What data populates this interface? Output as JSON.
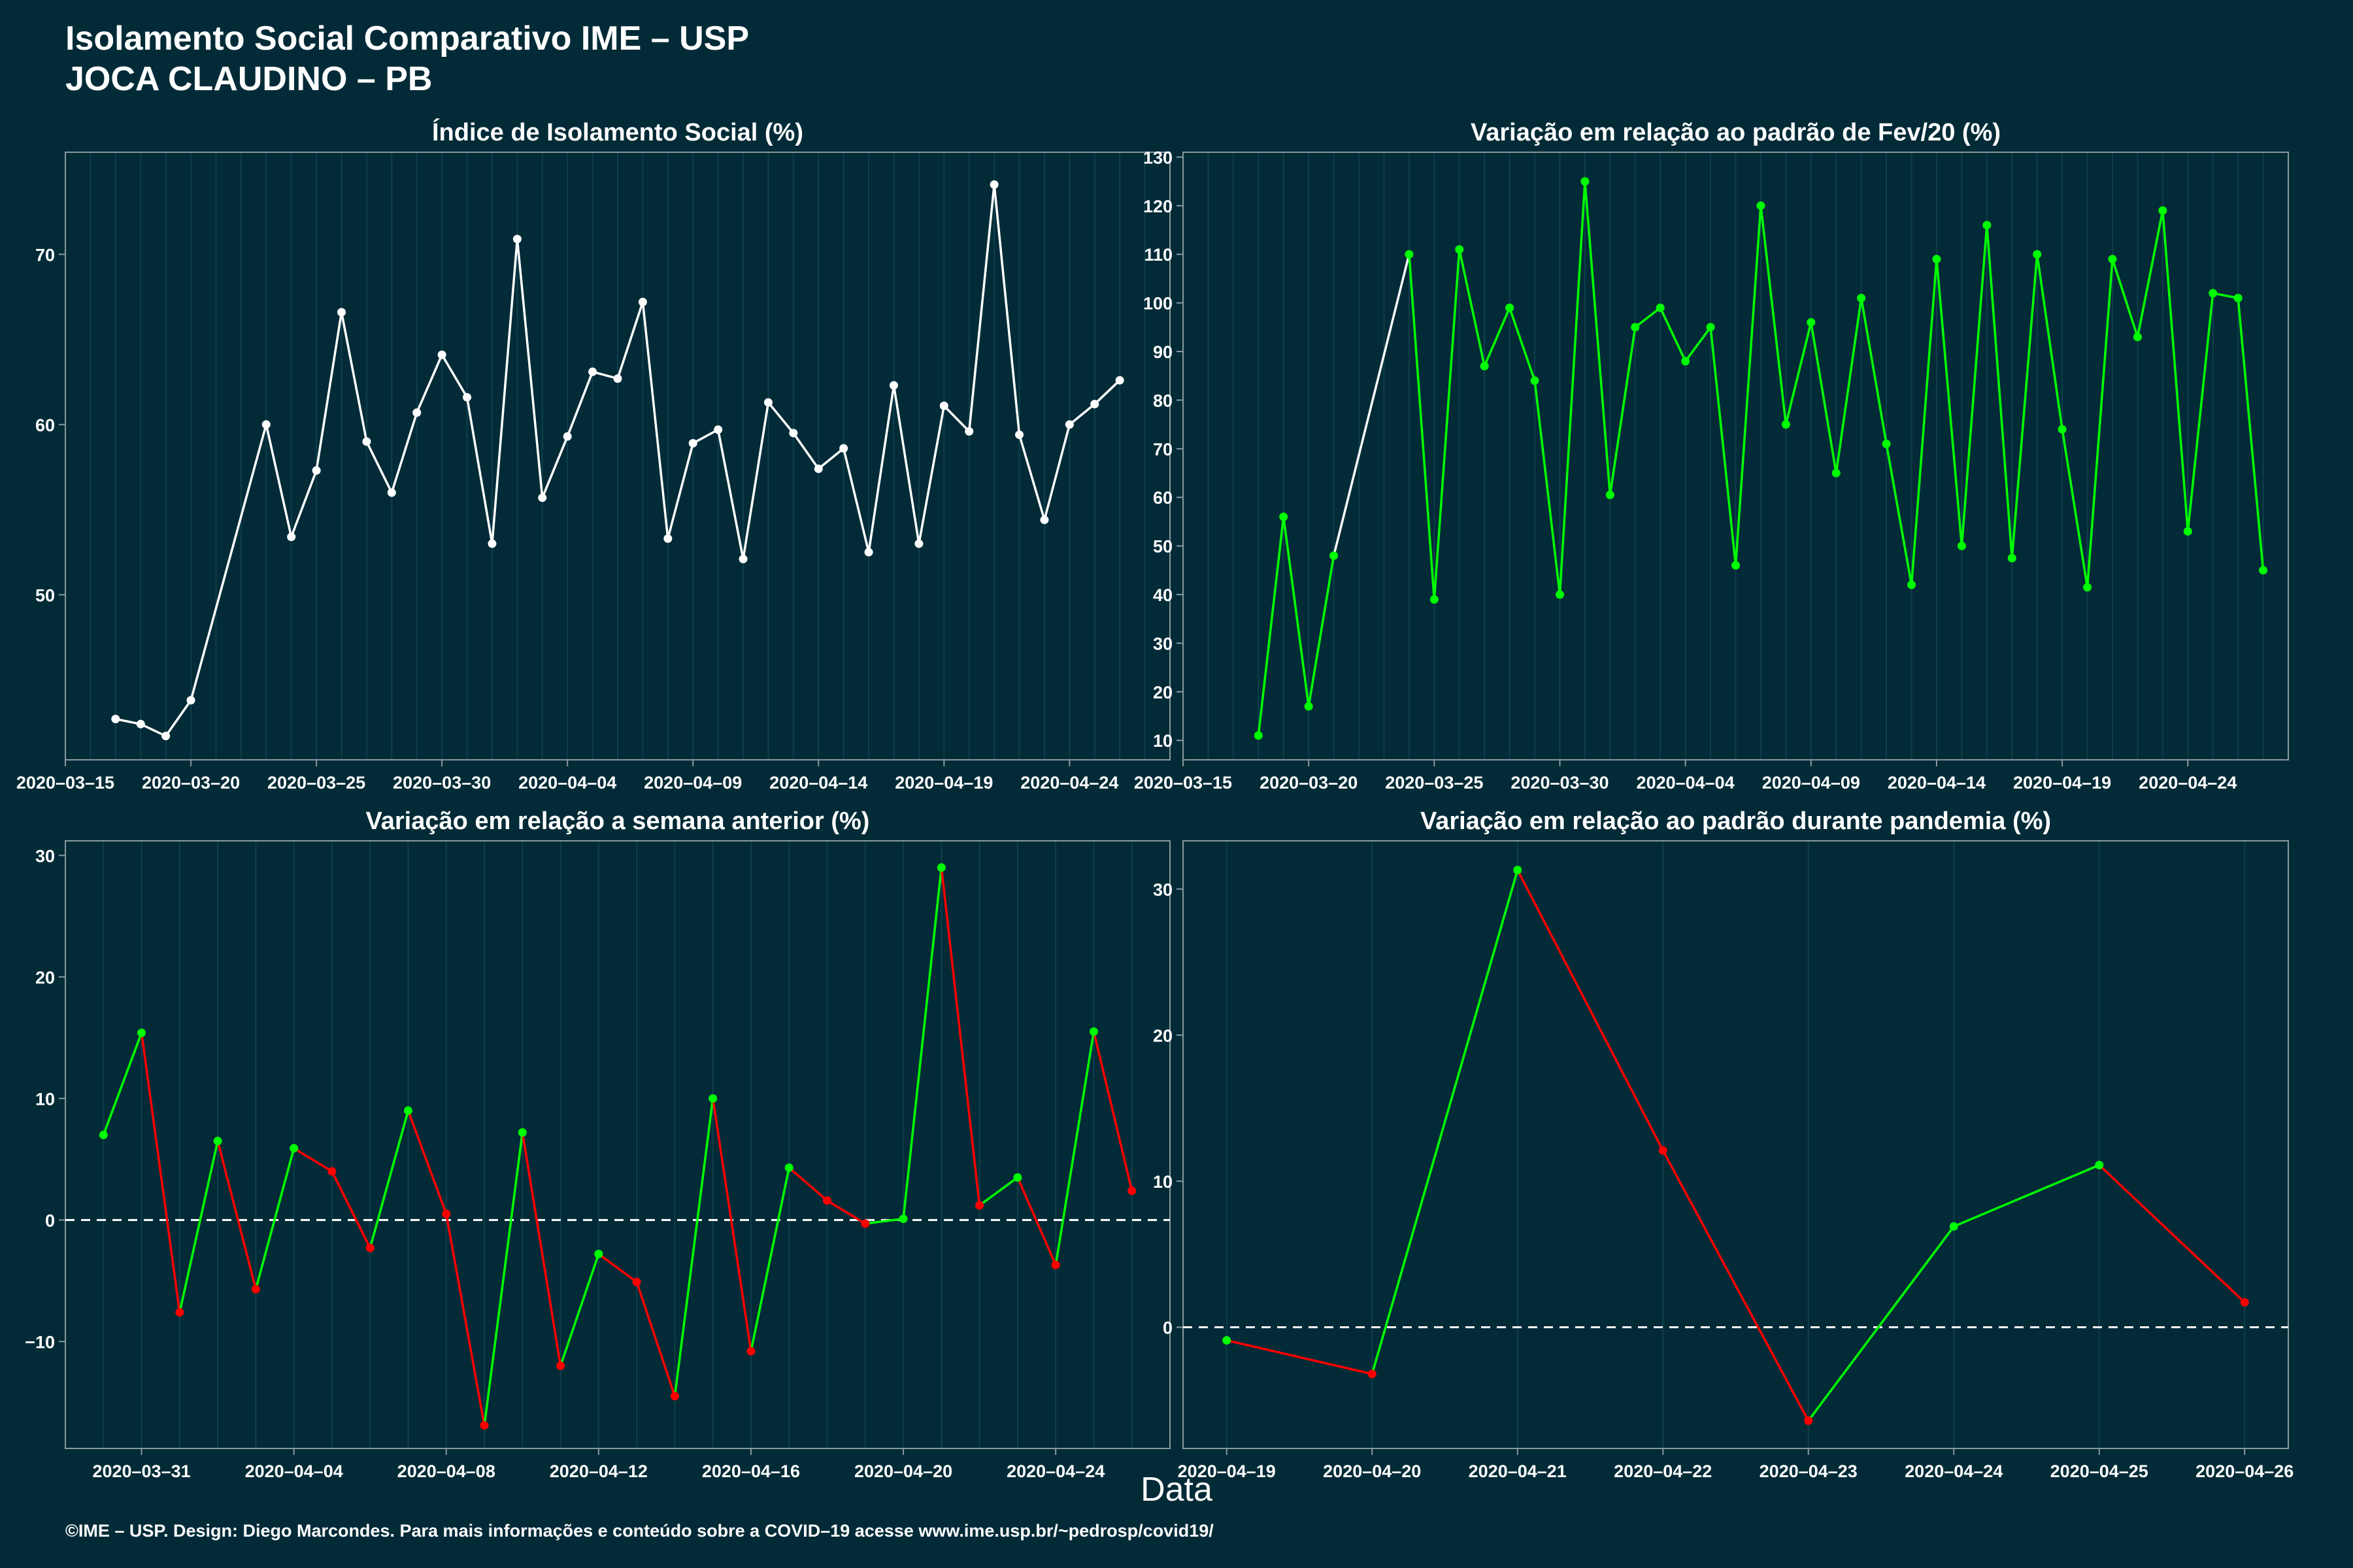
{
  "header": {
    "title_line1": "Isolamento Social Comparativo IME – USP",
    "title_line2": "JOCA CLAUDINO – PB"
  },
  "x_axis_title": "Data",
  "footer": "©IME – USP. Design: Diego Marcondes. Para mais informações e conteúdo sobre a COVID–19 acesse www.ime.usp.br/~pedrosp/covid19/",
  "colors": {
    "background": "#022b37",
    "white": "#ffffff",
    "green": "#00ff00",
    "red": "#ff0000",
    "grid": "#0f3f4c",
    "axis": "#8a9aa0"
  },
  "chart_data": [
    {
      "type": "line",
      "title": "Índice de Isolamento Social (%)",
      "xlabel": "",
      "ylabel": "",
      "color_mode": "single",
      "xlim": [
        "2020-03-15",
        "2020-04-28"
      ],
      "ylim": [
        40.3,
        76
      ],
      "xticks": [
        "2020-03-15",
        "2020-03-20",
        "2020-03-25",
        "2020-03-30",
        "2020-04-04",
        "2020-04-09",
        "2020-04-14",
        "2020-04-19",
        "2020-04-24"
      ],
      "yticks": [
        50,
        60,
        70
      ],
      "zero_line": false,
      "x": [
        "2020-03-17",
        "2020-03-18",
        "2020-03-19",
        "2020-03-20",
        "2020-03-23",
        "2020-03-24",
        "2020-03-25",
        "2020-03-26",
        "2020-03-27",
        "2020-03-28",
        "2020-03-29",
        "2020-03-30",
        "2020-03-31",
        "2020-04-01",
        "2020-04-02",
        "2020-04-03",
        "2020-04-04",
        "2020-04-05",
        "2020-04-06",
        "2020-04-07",
        "2020-04-08",
        "2020-04-09",
        "2020-04-10",
        "2020-04-11",
        "2020-04-12",
        "2020-04-13",
        "2020-04-14",
        "2020-04-15",
        "2020-04-16",
        "2020-04-17",
        "2020-04-18",
        "2020-04-19",
        "2020-04-20",
        "2020-04-21",
        "2020-04-22",
        "2020-04-23",
        "2020-04-24",
        "2020-04-25",
        "2020-04-26"
      ],
      "values": [
        42.7,
        42.4,
        41.7,
        43.8,
        60.0,
        53.4,
        57.3,
        66.6,
        59.0,
        56.0,
        60.7,
        64.1,
        61.6,
        53.0,
        70.9,
        55.7,
        59.3,
        63.1,
        62.7,
        67.2,
        53.3,
        58.9,
        59.7,
        52.1,
        61.3,
        59.5,
        57.4,
        58.6,
        52.5,
        62.3,
        53.0,
        61.1,
        59.6,
        74.1,
        59.4,
        54.4,
        60.0,
        61.2,
        62.6
      ]
    },
    {
      "type": "line",
      "title": "Variação em relação ao padrão de Fev/20 (%)",
      "xlabel": "",
      "ylabel": "",
      "color_mode": "green_after_gap",
      "xlim": [
        "2020-03-15",
        "2020-04-28"
      ],
      "ylim": [
        6,
        131
      ],
      "xticks": [
        "2020-03-15",
        "2020-03-20",
        "2020-03-25",
        "2020-03-30",
        "2020-04-04",
        "2020-04-09",
        "2020-04-14",
        "2020-04-19",
        "2020-04-24"
      ],
      "yticks": [
        10,
        20,
        30,
        40,
        50,
        60,
        70,
        80,
        90,
        100,
        110,
        120,
        130
      ],
      "zero_line": false,
      "x": [
        "2020-03-18",
        "2020-03-19",
        "2020-03-20",
        "2020-03-21",
        "2020-03-24",
        "2020-03-25",
        "2020-03-26",
        "2020-03-27",
        "2020-03-28",
        "2020-03-29",
        "2020-03-30",
        "2020-03-31",
        "2020-04-01",
        "2020-04-02",
        "2020-04-03",
        "2020-04-04",
        "2020-04-05",
        "2020-04-06",
        "2020-04-07",
        "2020-04-08",
        "2020-04-09",
        "2020-04-10",
        "2020-04-11",
        "2020-04-12",
        "2020-04-13",
        "2020-04-14",
        "2020-04-15",
        "2020-04-16",
        "2020-04-17",
        "2020-04-18",
        "2020-04-19",
        "2020-04-20",
        "2020-04-21",
        "2020-04-22",
        "2020-04-23",
        "2020-04-24",
        "2020-04-25",
        "2020-04-26",
        "2020-04-27"
      ],
      "values": [
        11,
        56,
        17,
        48,
        110,
        39,
        111,
        87,
        99,
        84,
        40,
        125,
        60.5,
        95,
        99,
        88,
        95,
        46,
        120,
        75,
        96,
        65,
        101,
        71,
        42,
        109,
        50,
        116,
        47.5,
        110,
        74,
        41.5,
        109,
        93,
        119,
        53,
        102,
        101,
        45
      ]
    },
    {
      "type": "line",
      "title": "Variação em relação a semana anterior (%)",
      "xlabel": "",
      "ylabel": "",
      "color_mode": "direction",
      "xlim": [
        "2020-03-29",
        "2020-04-27"
      ],
      "ylim": [
        -18.8,
        31.2
      ],
      "xticks": [
        "2020-03-31",
        "2020-04-04",
        "2020-04-08",
        "2020-04-12",
        "2020-04-16",
        "2020-04-20",
        "2020-04-24"
      ],
      "yticks": [
        -10,
        0,
        10,
        20,
        30
      ],
      "zero_line": true,
      "x": [
        "2020-03-30",
        "2020-03-31",
        "2020-04-01",
        "2020-04-02",
        "2020-04-03",
        "2020-04-04",
        "2020-04-05",
        "2020-04-06",
        "2020-04-07",
        "2020-04-08",
        "2020-04-09",
        "2020-04-10",
        "2020-04-11",
        "2020-04-12",
        "2020-04-13",
        "2020-04-14",
        "2020-04-15",
        "2020-04-16",
        "2020-04-17",
        "2020-04-18",
        "2020-04-19",
        "2020-04-20",
        "2020-04-21",
        "2020-04-22",
        "2020-04-23",
        "2020-04-24",
        "2020-04-25",
        "2020-04-26"
      ],
      "values": [
        7.0,
        15.4,
        -7.6,
        6.5,
        -5.7,
        5.9,
        4.0,
        -2.3,
        9.0,
        0.5,
        -16.9,
        7.2,
        -12.0,
        -2.8,
        -5.1,
        -14.5,
        10.0,
        -10.8,
        4.3,
        1.6,
        -0.3,
        0.1,
        29.0,
        1.2,
        3.5,
        -3.7,
        15.5,
        2.4
      ]
    },
    {
      "type": "line",
      "title": "Variação em relação ao padrão durante pandemia (%)",
      "xlabel": "",
      "ylabel": "",
      "color_mode": "direction",
      "xlim": [
        "2020-04-18.7",
        "2020-04-26.3"
      ],
      "ylim": [
        -8.3,
        33.3
      ],
      "xticks": [
        "2020-04-19",
        "2020-04-20",
        "2020-04-21",
        "2020-04-22",
        "2020-04-23",
        "2020-04-24",
        "2020-04-25",
        "2020-04-26"
      ],
      "yticks": [
        0,
        10,
        20,
        30
      ],
      "zero_line": true,
      "x": [
        "2020-04-19",
        "2020-04-20",
        "2020-04-21",
        "2020-04-22",
        "2020-04-23",
        "2020-04-24",
        "2020-04-25",
        "2020-04-26"
      ],
      "values": [
        -0.9,
        -3.2,
        31.3,
        12.1,
        -6.4,
        6.9,
        11.1,
        1.7
      ]
    }
  ]
}
